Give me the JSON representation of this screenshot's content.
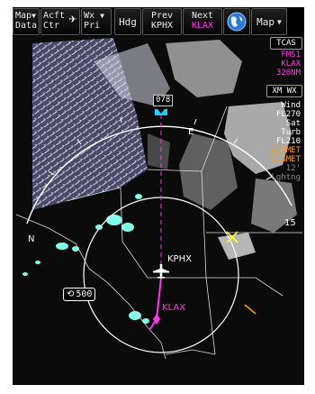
{
  "toolbar": {
    "map_data": {
      "line1": "Map",
      "line2": "Data"
    },
    "acft_ctr": {
      "line1": "Acft",
      "line2": "Ctr"
    },
    "wx_pri": {
      "line1": "Wx",
      "line2": "Pri"
    },
    "hdg": "Hdg",
    "prev": {
      "line1": "Prev",
      "line2": "KPHX"
    },
    "next": {
      "line1": "Next",
      "line2": "KLAX"
    },
    "map_menu": "Map"
  },
  "right_panel": {
    "tcas": "TCAS",
    "fms_line1": "FMS1",
    "fms_line2": "KLAX",
    "fms_line3": "320NM",
    "xm_wx": "XM WX",
    "wind": "Wind",
    "wind_fl": "FL270",
    "sat": "Sat",
    "turb": "Turb",
    "turb_fl": "FL210",
    "airmet": "AIRMET",
    "sigmet": "SIGMET",
    "lightning_age": "12'",
    "lightning": "Lghtng"
  },
  "map": {
    "heading_readout": "078",
    "compass_e": "E",
    "compass_n": "N",
    "compass_15": "15",
    "origin": "KPHX",
    "destination": "KLAX",
    "range_value": "500",
    "colors": {
      "route": "#ff36e9",
      "precip": "#7fffe8",
      "airmet": "#ff9b1f",
      "waypoint": "#ffff33",
      "heading_bug": "#22ccff",
      "clouds": "#ffffff"
    }
  }
}
